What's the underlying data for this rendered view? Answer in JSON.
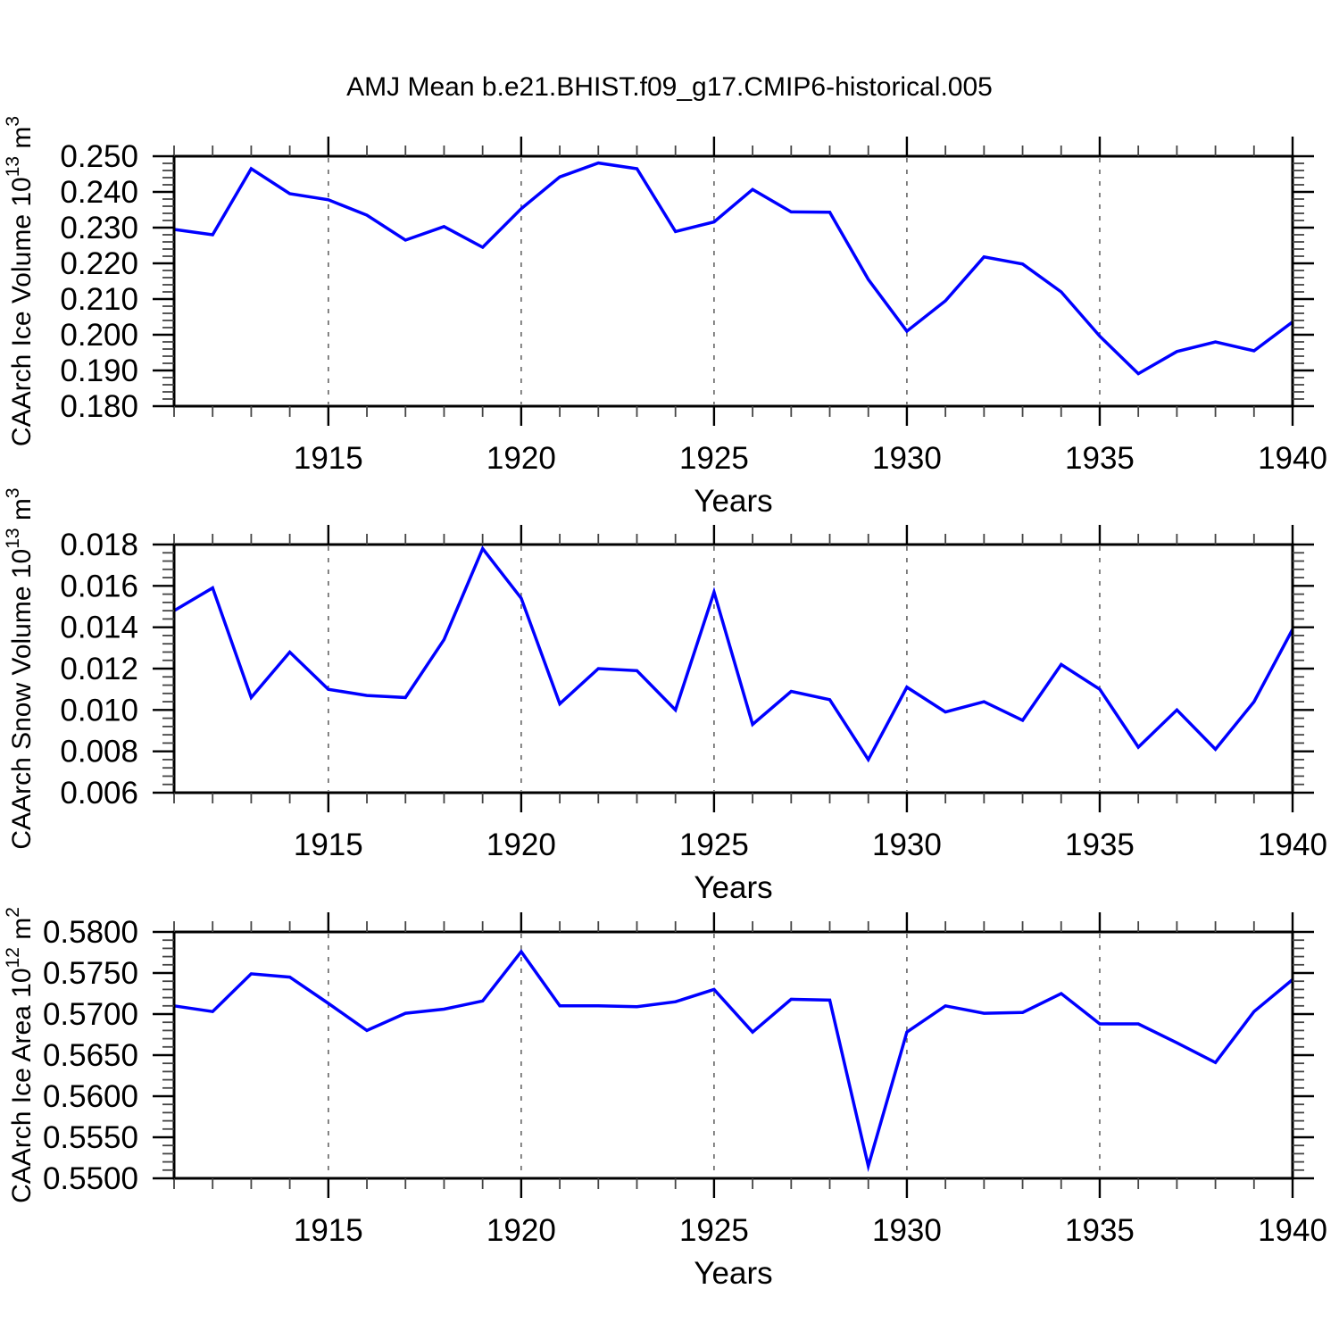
{
  "title": "AMJ Mean b.e21.BHIST.f09_g17.CMIP6-historical.005",
  "xlabel": "Years",
  "years": [
    1911,
    1912,
    1913,
    1914,
    1915,
    1916,
    1917,
    1918,
    1919,
    1920,
    1921,
    1922,
    1923,
    1924,
    1925,
    1926,
    1927,
    1928,
    1929,
    1930,
    1931,
    1932,
    1933,
    1934,
    1935,
    1936,
    1937,
    1938,
    1939,
    1940
  ],
  "colors": {
    "line": "#0000FF",
    "frame": "#000000",
    "grid_dashed": "#666666",
    "tick_major": "#000000",
    "tick_minor": "#444444",
    "text": "#000000"
  },
  "chart_data": [
    {
      "type": "line",
      "name": "ice-volume",
      "ylabel": "CAArch Ice Volume 10^13 m^3",
      "ylabel_rich": [
        {
          "t": "CAArch Ice Volume 10"
        },
        {
          "t": "13",
          "sup": true
        },
        {
          "t": " m"
        },
        {
          "t": "3",
          "sup": true
        }
      ],
      "xlabel": "Years",
      "xlim": [
        1911,
        1940
      ],
      "ylim": [
        0.18,
        0.25
      ],
      "ytick_major_step": 0.01,
      "ytick_minor_step": 0.002,
      "ytick_decimals": 3,
      "xticks_labeled": [
        1915,
        1920,
        1925,
        1930,
        1935,
        1940
      ],
      "grid_years_dashed": [
        1915,
        1920,
        1925,
        1930,
        1935
      ],
      "values": [
        0.2295,
        0.228,
        0.2465,
        0.2395,
        0.2378,
        0.2335,
        0.2265,
        0.2303,
        0.2245,
        0.2353,
        0.2442,
        0.2481,
        0.2465,
        0.2289,
        0.2316,
        0.2407,
        0.2344,
        0.2343,
        0.2155,
        0.201,
        0.2095,
        0.2218,
        0.2198,
        0.212,
        0.1996,
        0.1891,
        0.1953,
        0.198,
        0.1955,
        0.2036
      ]
    },
    {
      "type": "line",
      "name": "snow-volume",
      "ylabel": "CAArch Snow Volume 10^13 m^3",
      "ylabel_rich": [
        {
          "t": "CAArch Snow Volume 10"
        },
        {
          "t": "13",
          "sup": true
        },
        {
          "t": " m"
        },
        {
          "t": "3",
          "sup": true
        }
      ],
      "xlabel": "Years",
      "xlim": [
        1911,
        1940
      ],
      "ylim": [
        0.006,
        0.018
      ],
      "ytick_major_step": 0.002,
      "ytick_minor_step": 0.0004,
      "ytick_decimals": 3,
      "xticks_labeled": [
        1915,
        1920,
        1925,
        1930,
        1935,
        1940
      ],
      "grid_years_dashed": [
        1915,
        1920,
        1925,
        1930,
        1935
      ],
      "values": [
        0.0148,
        0.0159,
        0.0106,
        0.0128,
        0.011,
        0.0107,
        0.0106,
        0.0134,
        0.0178,
        0.0154,
        0.0103,
        0.012,
        0.0119,
        0.01,
        0.0157,
        0.0093,
        0.0109,
        0.0105,
        0.0076,
        0.0111,
        0.0099,
        0.0104,
        0.0095,
        0.0122,
        0.011,
        0.0082,
        0.01,
        0.0081,
        0.0104,
        0.0139
      ]
    },
    {
      "type": "line",
      "name": "ice-area",
      "ylabel": "CAArch Ice Area 10^12 m^2",
      "ylabel_rich": [
        {
          "t": "CAArch Ice Area 10"
        },
        {
          "t": "12",
          "sup": true
        },
        {
          "t": " m"
        },
        {
          "t": "2",
          "sup": true
        }
      ],
      "xlabel": "Years",
      "xlim": [
        1911,
        1940
      ],
      "ylim": [
        0.55,
        0.58
      ],
      "ytick_major_step": 0.005,
      "ytick_minor_step": 0.001,
      "ytick_decimals": 4,
      "xticks_labeled": [
        1915,
        1920,
        1925,
        1930,
        1935,
        1940
      ],
      "grid_years_dashed": [
        1915,
        1920,
        1925,
        1930,
        1935
      ],
      "values": [
        0.571,
        0.5703,
        0.5749,
        0.5745,
        0.5713,
        0.568,
        0.5701,
        0.5706,
        0.5716,
        0.5776,
        0.571,
        0.571,
        0.5709,
        0.5715,
        0.573,
        0.5678,
        0.5718,
        0.5717,
        0.5515,
        0.5678,
        0.571,
        0.5701,
        0.5702,
        0.5725,
        0.5688,
        0.5688,
        0.5665,
        0.5641,
        0.5703,
        0.5742
      ]
    }
  ]
}
